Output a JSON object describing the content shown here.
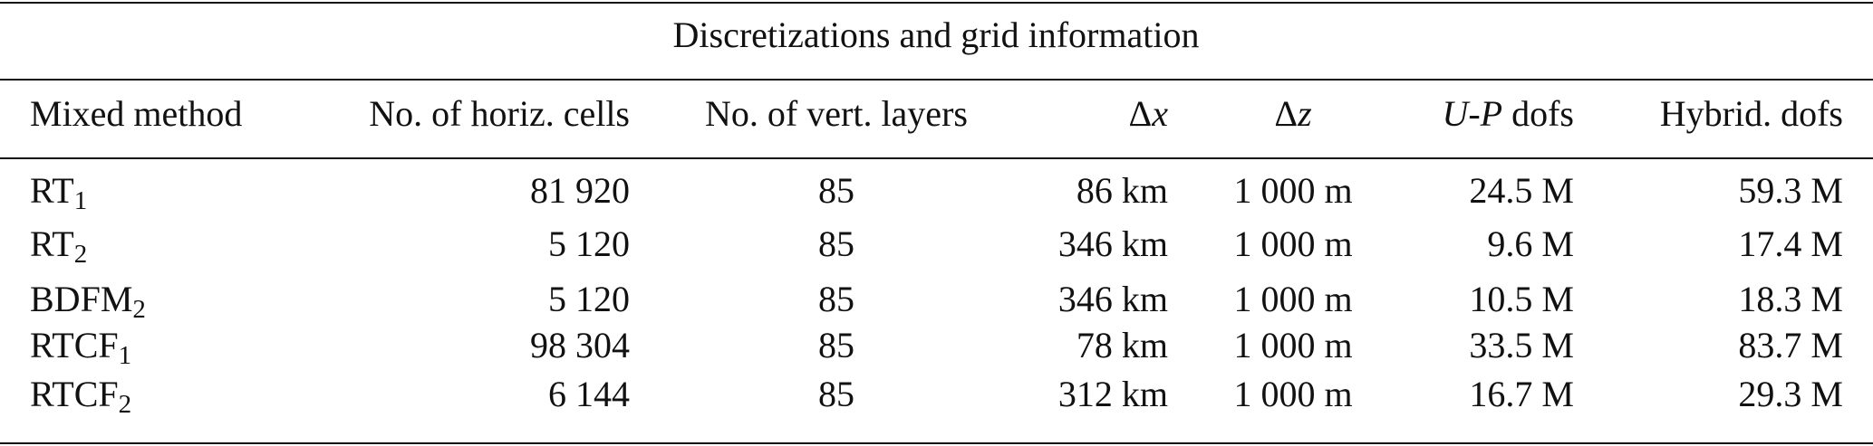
{
  "table": {
    "title": "Discretizations and grid information",
    "header": [
      "Mixed method",
      "No. of horiz. cells",
      "No. of vert. layers",
      [
        {
          "text": "Δ"
        },
        {
          "text": "x",
          "italic": true
        }
      ],
      [
        {
          "text": "Δ"
        },
        {
          "text": "z",
          "italic": true
        }
      ],
      [
        {
          "text": "U",
          "italic": true
        },
        {
          "text": "-"
        },
        {
          "text": "P",
          "italic": true
        },
        {
          "text": " dofs"
        }
      ],
      "Hybrid. dofs"
    ],
    "rows": [
      [
        {
          "text": "RT",
          "sub": "1"
        },
        "81 920",
        "85",
        "86 km",
        "1 000 m",
        "24.5 M",
        "59.3 M"
      ],
      [
        {
          "text": "RT",
          "sub": "2"
        },
        "5 120",
        "85",
        "346 km",
        "1 000 m",
        "9.6 M",
        "17.4 M"
      ],
      [
        {
          "text": "BDFM",
          "sub": "2"
        },
        "5 120",
        "85",
        "346 km",
        "1 000 m",
        "10.5 M",
        "18.3 M"
      ],
      [
        {
          "text": "RTCF",
          "sub": "1"
        },
        "98 304",
        "85",
        "78 km",
        "1 000 m",
        "33.5 M",
        "83.7 M"
      ],
      [
        {
          "text": "RTCF",
          "sub": "2"
        },
        "6 144",
        "85",
        "312 km",
        "1 000 m",
        "16.7 M",
        "29.3 M"
      ]
    ]
  }
}
